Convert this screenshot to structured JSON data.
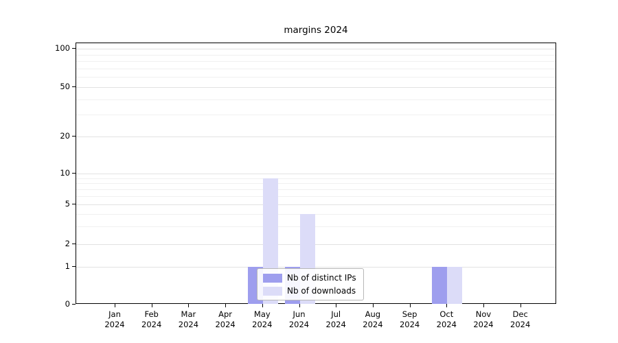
{
  "figure": {
    "title": "margins 2024"
  },
  "chart_data": {
    "type": "bar",
    "title": "margins 2024",
    "x_categories": [
      "Jan",
      "Feb",
      "Mar",
      "Apr",
      "May",
      "Jun",
      "Jul",
      "Aug",
      "Sep",
      "Oct",
      "Nov",
      "Dec"
    ],
    "x_year": "2024",
    "series": [
      {
        "name": "Nb of distinct IPs",
        "color": "#9e9eee",
        "values": [
          0,
          0,
          0,
          0,
          1,
          1,
          0,
          0,
          0,
          1,
          0,
          0
        ]
      },
      {
        "name": "Nb of downloads",
        "color": "#dcdcf8",
        "values": [
          0,
          0,
          0,
          0,
          9,
          4,
          0,
          0,
          0,
          1,
          0,
          0
        ]
      }
    ],
    "yscale": "symlog",
    "yticks": [
      0,
      1,
      2,
      5,
      10,
      20,
      50,
      100
    ],
    "yminorticks": [
      3,
      4,
      6,
      7,
      8,
      9,
      30,
      40,
      60,
      70,
      80,
      90
    ],
    "ylim": [
      0,
      130
    ],
    "grid": true,
    "legend": {
      "items": [
        "Nb of distinct IPs",
        "Nb of downloads"
      ],
      "position": "bottom-center-inside"
    }
  }
}
